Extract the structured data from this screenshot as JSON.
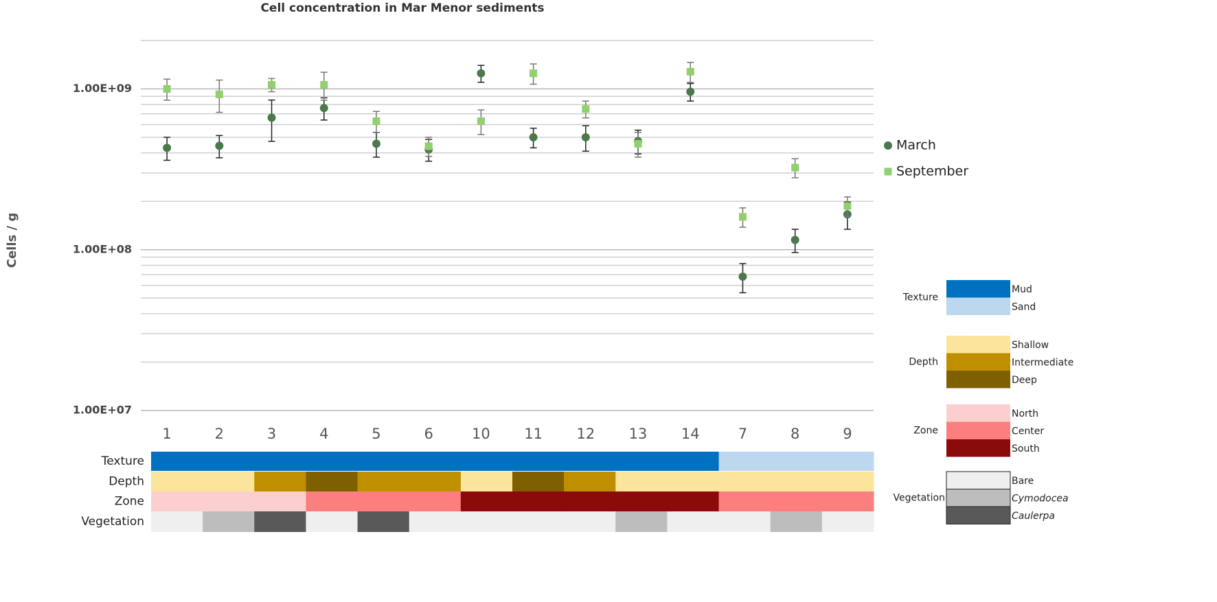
{
  "chart_data": {
    "type": "scatter",
    "title": "Cell concentration in Mar Menor sediments",
    "y_label": "Cells / g",
    "log_y": true,
    "grid": true,
    "categories": [
      "1",
      "2",
      "3",
      "4",
      "5",
      "6",
      "10",
      "11",
      "12",
      "13",
      "14",
      "7",
      "8",
      "9"
    ],
    "ylim": [
      10000000,
      2000000000
    ],
    "yticks": [
      {
        "value": 10000000,
        "label": "1.00E+07"
      },
      {
        "value": 100000000,
        "label": "1.00E+08"
      },
      {
        "value": 1000000000,
        "label": "1.00E+09"
      }
    ],
    "yminor": [
      20000000,
      30000000,
      40000000,
      50000000,
      60000000,
      70000000,
      80000000,
      90000000,
      200000000,
      300000000,
      400000000,
      500000000,
      600000000,
      700000000,
      800000000,
      900000000,
      2000000000
    ],
    "legend_position": "right",
    "series": [
      {
        "name": "March",
        "color": "#4a7a4c",
        "marker": "circle",
        "error_color": "#222222",
        "values": [
          430000000,
          443000000,
          662000000,
          760000000,
          456000000,
          420000000,
          1250000000,
          500000000,
          500000000,
          474000000,
          960000000,
          68000000,
          115000000,
          166000000
        ],
        "errors": [
          70000000,
          70000000,
          190000000,
          120000000,
          80000000,
          65000000,
          150000000,
          70000000,
          90000000,
          80000000,
          120000000,
          14000000,
          19000000,
          32000000
        ]
      },
      {
        "name": "September",
        "color": "#92cf6e",
        "marker": "square",
        "error_color": "#777777",
        "values": [
          1000000000,
          925000000,
          1060000000,
          1060000000,
          630000000,
          440000000,
          630000000,
          1250000000,
          750000000,
          456000000,
          1280000000,
          160000000,
          324000000,
          187000000
        ],
        "errors": [
          150000000,
          210000000,
          100000000,
          210000000,
          95000000,
          60000000,
          110000000,
          180000000,
          90000000,
          80000000,
          180000000,
          22000000,
          44000000,
          26000000
        ]
      }
    ],
    "strips": [
      {
        "name": "Texture",
        "classes": [
          {
            "name": "Mud",
            "color": "#0070c0"
          },
          {
            "name": "Sand",
            "color": "#bdd7ee"
          }
        ],
        "values": [
          "Mud",
          "Mud",
          "Mud",
          "Mud",
          "Mud",
          "Mud",
          "Mud",
          "Mud",
          "Mud",
          "Mud",
          "Mud",
          "Sand",
          "Sand",
          "Sand"
        ]
      },
      {
        "name": "Depth",
        "classes": [
          {
            "name": "Shallow",
            "color": "#fbe49b"
          },
          {
            "name": "Intermediate",
            "color": "#bf8f00"
          },
          {
            "name": "Deep",
            "color": "#7f6000"
          }
        ],
        "values": [
          "Shallow",
          "Shallow",
          "Intermediate",
          "Deep",
          "Intermediate",
          "Intermediate",
          "Shallow",
          "Deep",
          "Intermediate",
          "Shallow",
          "Shallow",
          "Shallow",
          "Shallow",
          "Shallow"
        ]
      },
      {
        "name": "Zone",
        "classes": [
          {
            "name": "North",
            "color": "#fccfcf"
          },
          {
            "name": "Center",
            "color": "#fb7f7f"
          },
          {
            "name": "South",
            "color": "#8b0a0a"
          }
        ],
        "values": [
          "North",
          "North",
          "North",
          "Center",
          "Center",
          "Center",
          "South",
          "South",
          "South",
          "South",
          "South",
          "Center",
          "Center",
          "Center"
        ]
      },
      {
        "name": "Vegetation",
        "classes": [
          {
            "name": "Bare",
            "color": "#efefef"
          },
          {
            "name": "Cymodocea",
            "color": "#bdbdbd",
            "italic": true
          },
          {
            "name": "Caulerpa",
            "color": "#595959",
            "italic": true
          }
        ],
        "values": [
          "Bare",
          "Cymodocea",
          "Caulerpa",
          "Bare",
          "Caulerpa",
          "Bare",
          "Bare",
          "Bare",
          "Bare",
          "Cymodocea",
          "Bare",
          "Bare",
          "Cymodocea",
          "Bare"
        ]
      }
    ]
  }
}
